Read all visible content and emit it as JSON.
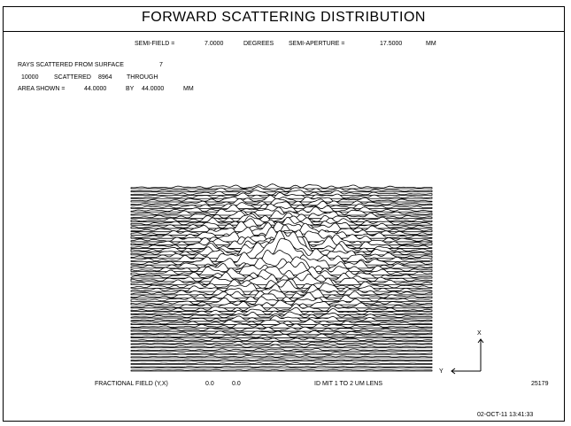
{
  "title": "FORWARD SCATTERING DISTRIBUTION",
  "header": {
    "semi_field_label": "SEMI-FIELD =",
    "semi_field_value": "7.0000",
    "semi_field_unit": "DEGREES",
    "semi_aperture_label": "SEMI-APERTURE =",
    "semi_aperture_value": "17.5000",
    "semi_aperture_unit": "MM"
  },
  "info": {
    "rays_label": "RAYS SCATTERED FROM SURFACE",
    "surface": "7",
    "rays_total": "10000",
    "scattered_label": "SCATTERED",
    "scattered_count": "8964",
    "through_label": "THROUGH",
    "area_label": "AREA SHOWN =",
    "area_x": "44.0000",
    "by_label": "BY",
    "area_y": "44.0000",
    "area_unit": "MM"
  },
  "axes": {
    "x_label": "X",
    "y_label": "Y"
  },
  "footer": {
    "fractional_field_label": "FRACTIONAL FIELD (Y,X)",
    "field_y": "0.0",
    "field_x": "0.0",
    "lens_id": "ID MIT 1 TO 2 UM LENS",
    "run_number": "25179",
    "timestamp": "02-OCT-11  13:41:33"
  }
}
